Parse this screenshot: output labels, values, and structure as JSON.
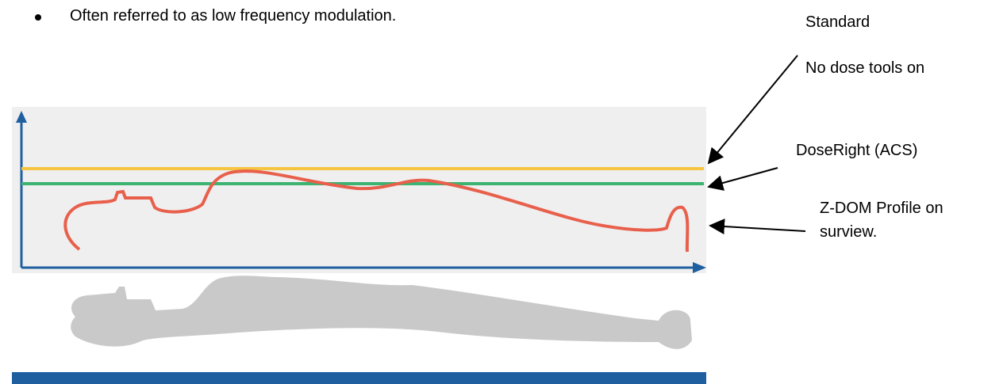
{
  "bullet": "Often referred to as low frequency modulation.",
  "labels": {
    "standard": "Standard",
    "no_dose": "No dose tools on",
    "doseright": "DoseRight (ACS)",
    "zdom_line1": "Z-DOM Profile on",
    "zdom_line2": "surview."
  }
}
